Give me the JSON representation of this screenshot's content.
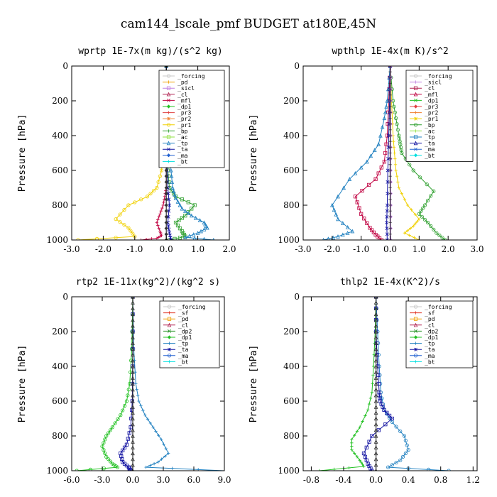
{
  "figure": {
    "title": "cam144_lscale_pmf  BUDGET at180E,45N"
  },
  "colors": {
    "_forcing": "#c8c8c8",
    "_pd": "#f0a000",
    "_sicl": "#c080e0",
    "_cl": "#b02050",
    "_mfl": "#c00040",
    "_dp1": "#20c020",
    "_dp2": "#209020",
    "_pr3": "#e04040",
    "_pr2": "#f08030",
    "_pr1": "#f0d000",
    "_bp": "#30a030",
    "_ac": "#90e040",
    "_tp": "#2080c0",
    "_ta": "#1010a0",
    "_ma": "#2060d0",
    "_bt": "#00e0e0",
    "_sf": "#e03020"
  },
  "chart_data": [
    {
      "type": "line",
      "title": "wprtp  1E-7x(m kg)/(s^2 kg)",
      "ylabel": "Pressure [hPa]",
      "xlim": [
        -3,
        2
      ],
      "ylim": [
        1000,
        0
      ],
      "xticks": [
        -3,
        -2,
        -1,
        0,
        1,
        2
      ],
      "xtick_labels": [
        "-3.0",
        "-2.0",
        "-1.0",
        "0.0",
        "1.0",
        "2.0"
      ],
      "yticks": [
        0,
        200,
        400,
        600,
        800,
        1000
      ],
      "ytick_labels": [
        "0",
        "200",
        "400",
        "600",
        "800",
        "1000"
      ],
      "legend_position": "top-right",
      "legend": [
        "_forcing",
        "_pd",
        "_sicl",
        "_cl",
        "_mfl",
        "_dp1",
        "_pr3",
        "_pr2",
        "_pr1",
        "_bp",
        "_ac",
        "_tp",
        "_ta",
        "_ma",
        "_bt"
      ],
      "series": [
        {
          "name": "_pr1",
          "x": [
            0,
            0,
            0,
            0,
            -0.05,
            -0.1,
            -0.15,
            -0.3,
            -0.6,
            -1.2,
            -1.6,
            -1.2,
            -1.0,
            -2.8
          ],
          "y": [
            0,
            100,
            200,
            300,
            400,
            500,
            600,
            700,
            750,
            800,
            880,
            930,
            980,
            1000
          ]
        },
        {
          "name": "_mfl",
          "x": [
            0,
            0,
            0,
            0,
            0,
            -0.05,
            -0.1,
            -0.2,
            -0.3,
            -0.2,
            -0.15,
            -0.3,
            -0.8
          ],
          "y": [
            0,
            200,
            400,
            600,
            700,
            750,
            800,
            850,
            900,
            950,
            975,
            990,
            1000
          ]
        },
        {
          "name": "_bp",
          "x": [
            0,
            0,
            0,
            0.02,
            0.05,
            0.1,
            0.3,
            0.9,
            0.6,
            0.3,
            0.5,
            0.6,
            0.1
          ],
          "y": [
            0,
            200,
            400,
            500,
            600,
            700,
            750,
            800,
            860,
            900,
            950,
            980,
            1000
          ]
        },
        {
          "name": "_tp",
          "x": [
            0,
            0.02,
            0.05,
            0.1,
            0.15,
            0.2,
            0.3,
            0.5,
            0.8,
            1.2,
            1.3,
            1.0,
            0.6,
            1.5
          ],
          "y": [
            0,
            200,
            400,
            500,
            600,
            700,
            760,
            820,
            860,
            900,
            930,
            960,
            985,
            1000
          ]
        },
        {
          "name": "_ta",
          "x": [
            0,
            0,
            0.01,
            0.02,
            0.05,
            0.1,
            0.05,
            0.1,
            0.15
          ],
          "y": [
            0,
            200,
            400,
            600,
            700,
            800,
            900,
            960,
            1000
          ]
        },
        {
          "name": "_forcing",
          "x": [
            0,
            0,
            0,
            0,
            0,
            0,
            0,
            0,
            0,
            0,
            0
          ],
          "y": [
            0,
            100,
            200,
            300,
            400,
            500,
            600,
            700,
            800,
            900,
            1000
          ]
        }
      ]
    },
    {
      "type": "line",
      "title": "wpthlp  1E-4x(m K)/s^2",
      "ylabel": "Pressure [hPa]",
      "xlim": [
        -3,
        3
      ],
      "ylim": [
        1000,
        0
      ],
      "xticks": [
        -3,
        -2,
        -1,
        0,
        1,
        2,
        3
      ],
      "xtick_labels": [
        "-3.0",
        "-2.0",
        "-1.0",
        "0.0",
        "1.0",
        "2.0",
        "3.0"
      ],
      "yticks": [
        0,
        200,
        400,
        600,
        800,
        1000
      ],
      "ytick_labels": [
        "0",
        "200",
        "400",
        "600",
        "800",
        "1000"
      ],
      "legend_position": "top-right",
      "legend": [
        "_forcing",
        "_sicl",
        "_cl",
        "_mfl",
        "_dp1",
        "_pr3",
        "_pr2",
        "_pr1",
        "_bp",
        "_ac",
        "_tp",
        "_ta",
        "_ma",
        "_bt"
      ],
      "series": [
        {
          "name": "_bp",
          "x": [
            0,
            0.1,
            0.2,
            0.3,
            0.35,
            0.4,
            0.8,
            1.5,
            1.2,
            1.0,
            1.3,
            1.6,
            1.9
          ],
          "y": [
            0,
            200,
            300,
            400,
            450,
            500,
            600,
            720,
            800,
            850,
            900,
            960,
            1000
          ]
        },
        {
          "name": "_pr1",
          "x": [
            0,
            0.05,
            0.1,
            0.15,
            0.2,
            0.3,
            0.6,
            1.0,
            0.8,
            0.5,
            1.0
          ],
          "y": [
            0,
            200,
            400,
            500,
            600,
            700,
            800,
            880,
            920,
            960,
            1000
          ]
        },
        {
          "name": "_mfl",
          "x": [
            0,
            -0.05,
            -0.1,
            -0.2,
            -0.5,
            -1.2,
            -1.0,
            -0.7,
            -0.5,
            -0.3
          ],
          "y": [
            0,
            200,
            400,
            550,
            650,
            750,
            850,
            930,
            970,
            1000
          ]
        },
        {
          "name": "_tp",
          "x": [
            0,
            -0.1,
            -0.2,
            -0.4,
            -0.8,
            -1.4,
            -2.0,
            -1.8,
            -1.3,
            -1.8,
            -2.3
          ],
          "y": [
            0,
            200,
            300,
            450,
            550,
            650,
            800,
            880,
            950,
            980,
            1000
          ]
        },
        {
          "name": "_ta",
          "x": [
            0,
            -0.02,
            -0.05,
            -0.08,
            -0.1,
            -0.12,
            -0.1
          ],
          "y": [
            0,
            200,
            400,
            600,
            800,
            900,
            1000
          ]
        },
        {
          "name": "_sicl",
          "x": [
            0.02,
            0.02,
            0.02,
            0.02,
            0.02,
            0.02
          ],
          "y": [
            0,
            200,
            400,
            600,
            800,
            1000
          ]
        },
        {
          "name": "_forcing",
          "x": [
            0,
            0,
            0,
            0,
            0,
            0,
            0,
            0,
            0,
            0,
            0
          ],
          "y": [
            0,
            100,
            200,
            300,
            400,
            500,
            600,
            700,
            800,
            900,
            1000
          ]
        }
      ]
    },
    {
      "type": "line",
      "title": "rtp2  1E-11x(kg^2)/(kg^2 s)",
      "ylabel": "Pressure [hPa]",
      "xlim": [
        -6,
        9
      ],
      "ylim": [
        1000,
        0
      ],
      "xticks": [
        -6,
        -3,
        0,
        3,
        6,
        9
      ],
      "xtick_labels": [
        "-6.0",
        "-3.0",
        "0.0",
        "3.0",
        "6.0",
        "9.0"
      ],
      "yticks": [
        0,
        200,
        400,
        600,
        800,
        1000
      ],
      "ytick_labels": [
        "0",
        "200",
        "400",
        "600",
        "800",
        "1000"
      ],
      "legend_position": "top-right",
      "legend": [
        "_forcing",
        "_sf",
        "_pd",
        "_cl",
        "_dp2",
        "_dp1",
        "_tp",
        "_ta",
        "_ma",
        "_bt"
      ],
      "series": [
        {
          "name": "_dp1",
          "x": [
            0,
            -0.1,
            -0.3,
            -0.6,
            -1.2,
            -2.0,
            -2.6,
            -3.0,
            -2.6,
            -2.0,
            -1.5,
            -5.5
          ],
          "y": [
            0,
            300,
            500,
            600,
            680,
            750,
            800,
            860,
            920,
            960,
            980,
            1000
          ]
        },
        {
          "name": "_tp",
          "x": [
            0,
            0.1,
            0.3,
            0.6,
            1.2,
            2.0,
            2.8,
            3.5,
            2.5,
            1.3,
            9.0
          ],
          "y": [
            0,
            300,
            500,
            600,
            680,
            750,
            820,
            900,
            950,
            980,
            1000
          ]
        },
        {
          "name": "_ta",
          "x": [
            0,
            0,
            -0.05,
            -0.2,
            -0.6,
            -1.2,
            -1.0,
            -0.4,
            -0.2
          ],
          "y": [
            0,
            300,
            600,
            750,
            850,
            900,
            950,
            980,
            1000
          ]
        },
        {
          "name": "_forcing",
          "x": [
            0,
            0,
            0,
            0,
            0,
            0,
            0,
            0,
            0,
            0,
            0
          ],
          "y": [
            0,
            100,
            200,
            300,
            400,
            500,
            600,
            700,
            800,
            900,
            1000
          ]
        }
      ]
    },
    {
      "type": "line",
      "title": "thlp2  1E-4x(K^2)/s",
      "ylabel": "Pressure [hPa]",
      "xlim": [
        -0.9,
        1.25
      ],
      "ylim": [
        1000,
        0
      ],
      "xticks": [
        -0.8,
        -0.4,
        0,
        0.4,
        0.8,
        1.2
      ],
      "xtick_labels": [
        "-0.8",
        "-0.4",
        "0.0",
        "0.4",
        "0.8",
        "1.2"
      ],
      "yticks": [
        0,
        200,
        400,
        600,
        800,
        1000
      ],
      "ytick_labels": [
        "0",
        "200",
        "400",
        "600",
        "800",
        "1000"
      ],
      "legend_position": "top-right",
      "legend": [
        "_forcing",
        "_sf",
        "_pd",
        "_cl",
        "_dp2",
        "_dp1",
        "_tp",
        "_ta",
        "_ma",
        "_bt"
      ],
      "series": [
        {
          "name": "_tp",
          "x": [
            0,
            0.02,
            0.04,
            0.06,
            0.1,
            0.2,
            0.35,
            0.4,
            0.3,
            0.15,
            0.9
          ],
          "y": [
            0,
            200,
            400,
            550,
            650,
            720,
            800,
            880,
            940,
            980,
            1000
          ]
        },
        {
          "name": "_dp1",
          "x": [
            0,
            -0.01,
            -0.03,
            -0.05,
            -0.1,
            -0.2,
            -0.3,
            -0.3,
            -0.2,
            -0.15,
            -0.7
          ],
          "y": [
            0,
            200,
            400,
            550,
            650,
            750,
            820,
            880,
            940,
            975,
            1000
          ]
        },
        {
          "name": "_ta",
          "x": [
            0,
            0,
            0.02,
            0.04,
            0.05,
            0.1,
            0.2,
            -0.05,
            -0.15,
            -0.1,
            -0.05
          ],
          "y": [
            0,
            200,
            400,
            550,
            600,
            650,
            700,
            800,
            900,
            960,
            1000
          ]
        },
        {
          "name": "_forcing",
          "x": [
            0,
            0,
            0,
            0,
            0,
            0,
            0,
            0,
            0,
            0,
            0
          ],
          "y": [
            0,
            100,
            200,
            300,
            400,
            500,
            600,
            700,
            800,
            900,
            1000
          ]
        }
      ]
    }
  ]
}
